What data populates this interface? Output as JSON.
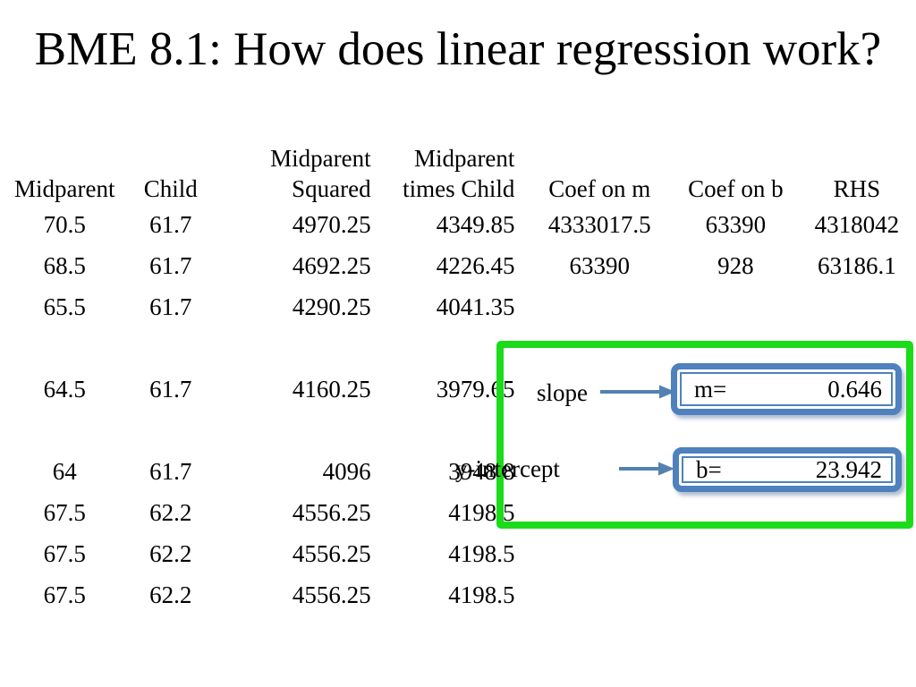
{
  "slide": {
    "title": "BME 8.1: How does linear regression work?"
  },
  "table": {
    "headers": [
      {
        "line1": "",
        "line2": "Midparent"
      },
      {
        "line1": "",
        "line2": "Child"
      },
      {
        "line1": "Midparent",
        "line2": "Squared"
      },
      {
        "line1": "Midparent",
        "line2": "times Child"
      },
      {
        "line1": "",
        "line2": "Coef on m"
      },
      {
        "line1": "",
        "line2": "Coef on b"
      },
      {
        "line1": "",
        "line2": "RHS"
      }
    ],
    "rows": [
      [
        "70.5",
        "61.7",
        "4970.25",
        "4349.85",
        "4333017.5",
        "63390",
        "4318042"
      ],
      [
        "68.5",
        "61.7",
        "4692.25",
        "4226.45",
        "63390",
        "928",
        "63186.1"
      ],
      [
        "65.5",
        "61.7",
        "4290.25",
        "4041.35",
        "",
        "",
        ""
      ],
      [
        "",
        "",
        "",
        "",
        "",
        "",
        ""
      ],
      [
        "64.5",
        "61.7",
        "4160.25",
        "3979.65",
        "",
        "",
        ""
      ],
      [
        "",
        "",
        "",
        "",
        "",
        "",
        ""
      ],
      [
        "64",
        "61.7",
        "4096",
        "3948.8",
        "",
        "",
        ""
      ],
      [
        "67.5",
        "62.2",
        "4556.25",
        "4198.5",
        "",
        "",
        ""
      ],
      [
        "67.5",
        "62.2",
        "4556.25",
        "4198.5",
        "",
        "",
        ""
      ],
      [
        "67.5",
        "62.2",
        "4556.25",
        "4198.5",
        "",
        "",
        ""
      ]
    ]
  },
  "callout": {
    "slope_label": "slope",
    "intercept_label": "y-intercept",
    "m_label": "m=",
    "m_value": "0.646",
    "b_label": "b=",
    "b_value": "23.942"
  },
  "colors": {
    "green_box_border": "#1bdb1b",
    "blue_box_border": "#4e81bd",
    "arrow": "#5580b2"
  }
}
